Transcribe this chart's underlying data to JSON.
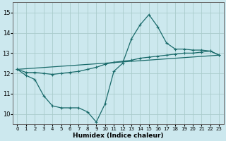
{
  "xlabel": "Humidex (Indice chaleur)",
  "xlim": [
    -0.5,
    23.5
  ],
  "ylim": [
    9.5,
    15.5
  ],
  "xticks": [
    0,
    1,
    2,
    3,
    4,
    5,
    6,
    7,
    8,
    9,
    10,
    11,
    12,
    13,
    14,
    15,
    16,
    17,
    18,
    19,
    20,
    21,
    22,
    23
  ],
  "yticks": [
    10,
    11,
    12,
    13,
    14,
    15
  ],
  "bg_color": "#cce8ee",
  "grid_color": "#aacccc",
  "line_color": "#1a6b6b",
  "curve1_x": [
    0,
    1,
    2,
    3,
    4,
    5,
    6,
    7,
    8,
    9,
    10,
    11,
    12,
    13,
    14,
    15,
    16,
    17,
    18,
    19,
    20,
    21,
    22,
    23
  ],
  "curve1_y": [
    12.2,
    11.9,
    11.7,
    10.9,
    10.4,
    10.3,
    10.3,
    10.3,
    10.1,
    9.6,
    10.5,
    12.1,
    12.5,
    13.7,
    14.4,
    14.9,
    14.3,
    13.5,
    13.2,
    13.2,
    13.15,
    13.15,
    13.1,
    12.9
  ],
  "curve2_x": [
    0,
    1,
    2,
    3,
    4,
    5,
    6,
    7,
    8,
    9,
    10,
    11,
    12,
    13,
    14,
    15,
    16,
    17,
    18,
    19,
    20,
    21,
    22,
    23
  ],
  "curve2_y": [
    12.2,
    12.05,
    12.05,
    12.0,
    11.95,
    12.0,
    12.05,
    12.1,
    12.2,
    12.3,
    12.45,
    12.55,
    12.6,
    12.65,
    12.75,
    12.8,
    12.85,
    12.9,
    12.95,
    13.0,
    13.0,
    13.05,
    13.1,
    12.9
  ],
  "curve3_x": [
    0,
    23
  ],
  "curve3_y": [
    12.2,
    12.9
  ]
}
